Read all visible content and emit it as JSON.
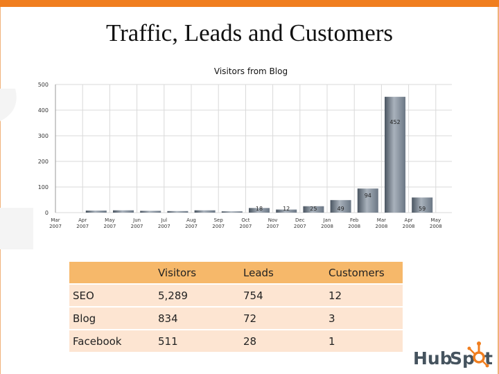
{
  "slide_title": "Traffic, Leads and Customers",
  "colors": {
    "accent": "#f07e1f",
    "bar": "#6b7785",
    "table_header": "#f6b86a",
    "table_row": "#fde5d2"
  },
  "chart_data": {
    "type": "bar",
    "title": "Visitors from Blog",
    "xlabel": "",
    "ylabel": "",
    "ylim": [
      0,
      500
    ],
    "y_ticks": [
      "0",
      "100",
      "200",
      "300",
      "400",
      "500"
    ],
    "categories": [
      "Mar 2007",
      "Apr 2007",
      "May 2007",
      "Jun 2007",
      "Jul 2007",
      "Aug 2007",
      "Sep 2007",
      "Oct 2007",
      "Nov 2007",
      "Dec 2007",
      "Jan 2008",
      "Feb 2008",
      "Mar 2008",
      "Apr 2008",
      "May 2008"
    ],
    "values": [
      0,
      8,
      9,
      7,
      6,
      9,
      5,
      18,
      12,
      25,
      49,
      94,
      452,
      59,
      0
    ],
    "data_labels": [
      "",
      "",
      "",
      "",
      "",
      "",
      "",
      "18",
      "12",
      "25",
      "49",
      "94",
      "452",
      "59",
      ""
    ],
    "grid": true,
    "legend": "none"
  },
  "table": {
    "headers": [
      "",
      "Visitors",
      "Leads",
      "Customers"
    ],
    "rows": [
      [
        "SEO",
        "5,289",
        "754",
        "12"
      ],
      [
        "Blog",
        "834",
        "72",
        "3"
      ],
      [
        "Facebook",
        "511",
        "28",
        "1"
      ]
    ]
  },
  "logo": {
    "text_a": "Hub",
    "text_b": "Sp",
    "text_c": "t"
  }
}
